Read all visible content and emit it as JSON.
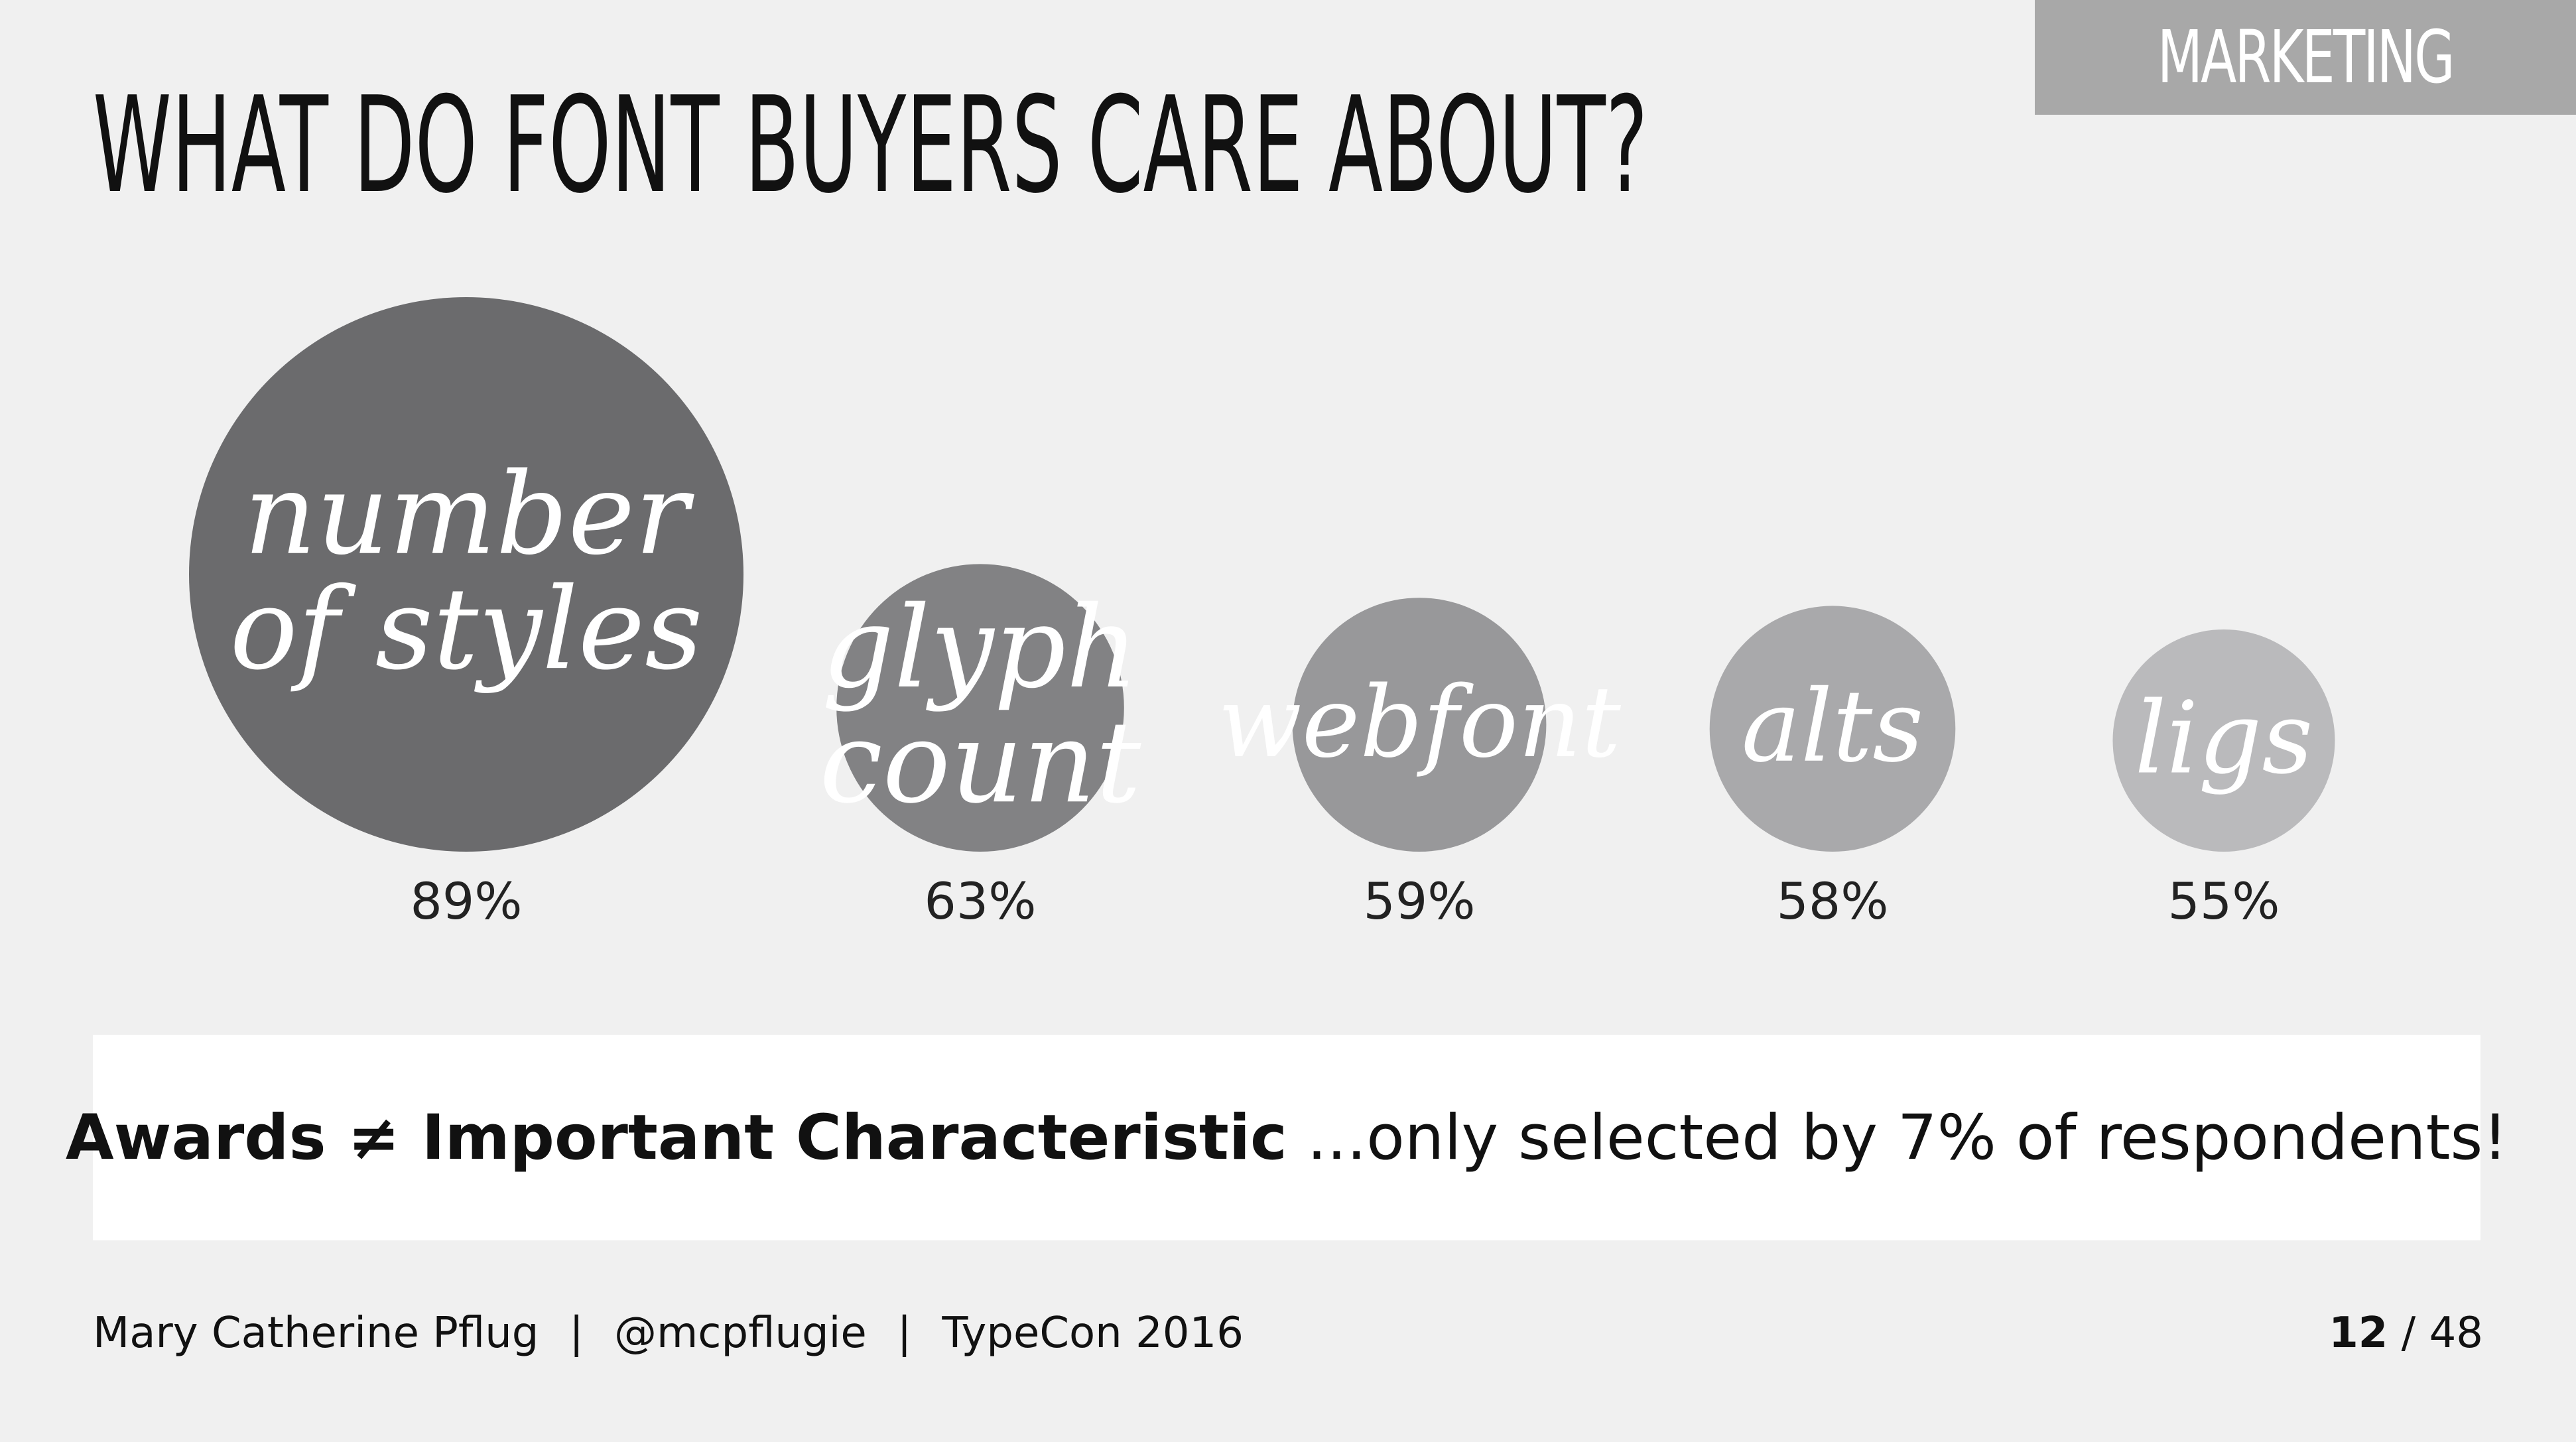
{
  "section_tag": "MARKETING",
  "title": "WHAT DO FONT BUYERS CARE ABOUT?",
  "chart_data": {
    "type": "bubble",
    "unit": "%",
    "max_value": 100,
    "categories": [
      {
        "label_lines": [
          "number",
          "of styles"
        ],
        "value": 89,
        "value_label": "89%",
        "color": "#6b6b6d"
      },
      {
        "label_lines": [
          "glyph",
          "count"
        ],
        "value": 63,
        "value_label": "63%",
        "color": "#828284"
      },
      {
        "label_lines": [
          "webfont"
        ],
        "value": 59,
        "value_label": "59%",
        "color": "#98989a"
      },
      {
        "label_lines": [
          "alts"
        ],
        "value": 58,
        "value_label": "58%",
        "color": "#a9a9ab"
      },
      {
        "label_lines": [
          "ligs"
        ],
        "value": 55,
        "value_label": "55%",
        "color": "#bababc"
      }
    ]
  },
  "callout": {
    "bold": "Awards ≠ Important Characteristic",
    "text": " ...only selected by 7% of respondents!"
  },
  "footer": {
    "author": "Mary Catherine Pflug",
    "separator": "|",
    "handle": "@mcpflugie",
    "event": "TypeCon 2016",
    "page_current": "12",
    "page_sep": " / ",
    "page_total": "48"
  }
}
